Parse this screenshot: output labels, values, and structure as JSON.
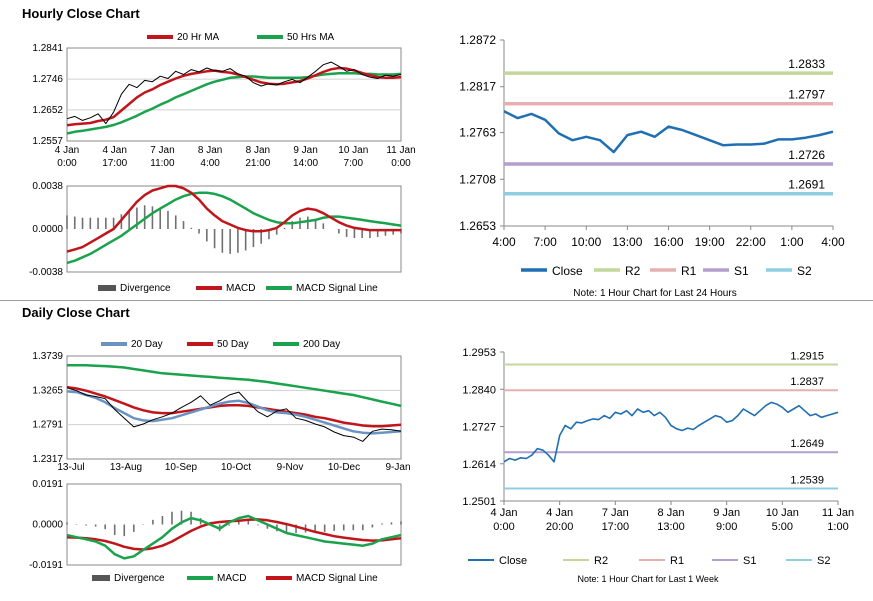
{
  "hourly_title": "Hourly Close Chart",
  "daily_title": "Daily Close Chart",
  "colors": {
    "ma20": "#c0161b",
    "ma50": "#1aa24c",
    "price": "#000000",
    "macd": "#c0161b",
    "signal": "#1aa24c",
    "divergence": "#707070",
    "close": "#1f6fb2",
    "r2": "#c4d79b",
    "r1": "#e6b0b0",
    "s1": "#b39fcb",
    "s2": "#8fcde0",
    "ma200": "#1aa24c",
    "ma20d": "#6a93c4",
    "ma50d": "#c0161b"
  },
  "chart_data": [
    {
      "id": "hourly-price",
      "type": "line",
      "title": "Hourly Close Chart",
      "legend": [
        "20 Hr MA",
        "50 Hrs MA"
      ],
      "yticks": [
        "1.2841",
        "1.2746",
        "1.2652",
        "1.2557"
      ],
      "ylim": [
        1.2557,
        1.2841
      ],
      "xticks": [
        [
          "4 Jan",
          "0:00"
        ],
        [
          "4 Jan",
          "17:00"
        ],
        [
          "7 Jan",
          "11:00"
        ],
        [
          "8 Jan",
          "4:00"
        ],
        [
          "8 Jan",
          "21:00"
        ],
        [
          "9 Jan",
          "14:00"
        ],
        [
          "10 Jan",
          "7:00"
        ],
        [
          "11 Jan",
          "0:00"
        ]
      ],
      "series": [
        {
          "name": "Close",
          "values": [
            1.2625,
            1.2632,
            1.262,
            1.2628,
            1.264,
            1.261,
            1.2645,
            1.27,
            1.273,
            1.272,
            1.2742,
            1.2738,
            1.2755,
            1.2748,
            1.277,
            1.276,
            1.2775,
            1.2768,
            1.278,
            1.2772,
            1.277,
            1.2778,
            1.2762,
            1.2755,
            1.2735,
            1.2725,
            1.2732,
            1.2728,
            1.2738,
            1.2745,
            1.2735,
            1.2752,
            1.277,
            1.279,
            1.2798,
            1.2785,
            1.277,
            1.2775,
            1.276,
            1.2752,
            1.2748,
            1.2758,
            1.2755,
            1.276
          ]
        },
        {
          "name": "20 Hr MA",
          "values": [
            1.2605,
            1.2608,
            1.261,
            1.2612,
            1.2618,
            1.2622,
            1.263,
            1.265,
            1.267,
            1.269,
            1.2705,
            1.2715,
            1.2728,
            1.2738,
            1.2748,
            1.2756,
            1.2762,
            1.2766,
            1.277,
            1.2772,
            1.2768,
            1.2766,
            1.276,
            1.2752,
            1.2744,
            1.2736,
            1.2732,
            1.273,
            1.2732,
            1.2736,
            1.274,
            1.2748,
            1.2758,
            1.2768,
            1.2776,
            1.278,
            1.2778,
            1.2772,
            1.2765,
            1.2758,
            1.2752,
            1.275,
            1.275,
            1.2752
          ]
        },
        {
          "name": "50 Hrs MA",
          "values": [
            1.258,
            1.2585,
            1.2588,
            1.2592,
            1.2596,
            1.26,
            1.2606,
            1.2614,
            1.2624,
            1.2634,
            1.2646,
            1.2656,
            1.2668,
            1.2678,
            1.269,
            1.27,
            1.271,
            1.272,
            1.273,
            1.2738,
            1.2744,
            1.275,
            1.2752,
            1.2754,
            1.2754,
            1.2752,
            1.275,
            1.275,
            1.275,
            1.275,
            1.275,
            1.2752,
            1.2756,
            1.276,
            1.2762,
            1.2764,
            1.2764,
            1.2764,
            1.2762,
            1.2762,
            1.276,
            1.276,
            1.276,
            1.2762
          ]
        }
      ]
    },
    {
      "id": "hourly-macd",
      "type": "line",
      "legend": [
        "Divergence",
        "MACD",
        "MACD Signal Line"
      ],
      "yticks": [
        "0.0038",
        "0.0000",
        "-0.0038"
      ],
      "ylim": [
        -0.0038,
        0.0038
      ],
      "series": [
        {
          "name": "MACD",
          "values": [
            -0.002,
            -0.0018,
            -0.0016,
            -0.0012,
            -0.0008,
            -0.0004,
            0.0,
            0.0008,
            0.0016,
            0.0024,
            0.003,
            0.0034,
            0.0036,
            0.0038,
            0.0038,
            0.0036,
            0.0032,
            0.0026,
            0.0018,
            0.0012,
            0.0007,
            0.0004,
            0.0001,
            -0.0001,
            -0.0002,
            -0.0002,
            -0.0001,
            0.0001,
            0.0006,
            0.0012,
            0.0016,
            0.0018,
            0.0017,
            0.0014,
            0.001,
            0.0006,
            0.0003,
            0.0001,
            0.0,
            -0.0001,
            -0.0001,
            -0.0001,
            -0.0001,
            -0.0001
          ]
        },
        {
          "name": "MACD Signal Line",
          "values": [
            -0.003,
            -0.0028,
            -0.0025,
            -0.0022,
            -0.0018,
            -0.0014,
            -0.001,
            -0.0006,
            -0.0001,
            0.0004,
            0.0009,
            0.0014,
            0.0018,
            0.0022,
            0.0026,
            0.0029,
            0.0031,
            0.0032,
            0.0032,
            0.0031,
            0.0029,
            0.0026,
            0.0022,
            0.0018,
            0.0014,
            0.0011,
            0.0008,
            0.0006,
            0.0005,
            0.0005,
            0.0006,
            0.0007,
            0.0008,
            0.001,
            0.0011,
            0.0011,
            0.001,
            0.0009,
            0.0008,
            0.0007,
            0.0006,
            0.0005,
            0.0004,
            0.0003
          ]
        },
        {
          "name": "Divergence",
          "values": [
            0.0012,
            0.0011,
            0.001,
            0.001,
            0.001,
            0.001,
            0.001,
            0.0013,
            0.0016,
            0.0019,
            0.0021,
            0.002,
            0.0018,
            0.0016,
            0.0012,
            0.0007,
            0.0001,
            -0.0004,
            -0.0011,
            -0.0017,
            -0.0021,
            -0.0022,
            -0.0021,
            -0.0019,
            -0.0016,
            -0.0013,
            -0.0009,
            -0.0005,
            0.0001,
            0.0007,
            0.001,
            0.0011,
            0.0009,
            0.0005,
            0.0,
            -0.0004,
            -0.0007,
            -0.0008,
            -0.0008,
            -0.0008,
            -0.0007,
            -0.0006,
            -0.0005,
            -0.0004
          ]
        }
      ]
    },
    {
      "id": "hourly-levels",
      "type": "line",
      "yticks": [
        "1.2872",
        "1.2817",
        "1.2763",
        "1.2708",
        "1.2653"
      ],
      "ylim": [
        1.2653,
        1.2872
      ],
      "xticks": [
        "4:00",
        "7:00",
        "10:00",
        "13:00",
        "16:00",
        "19:00",
        "22:00",
        "1:00",
        "4:00"
      ],
      "levels": [
        {
          "name": "R2",
          "value": 1.2833,
          "label": "1.2833"
        },
        {
          "name": "R1",
          "value": 1.2797,
          "label": "1.2797"
        },
        {
          "name": "S1",
          "value": 1.2726,
          "label": "1.2726"
        },
        {
          "name": "S2",
          "value": 1.2691,
          "label": "1.2691"
        }
      ],
      "close": [
        1.2788,
        1.278,
        1.2785,
        1.2778,
        1.2762,
        1.2754,
        1.2758,
        1.2754,
        1.274,
        1.276,
        1.2764,
        1.2758,
        1.277,
        1.2766,
        1.276,
        1.2754,
        1.2748,
        1.2749,
        1.2749,
        1.275,
        1.2755,
        1.2755,
        1.2757,
        1.276,
        1.2764
      ],
      "legend": [
        "Close",
        "R2",
        "R1",
        "S1",
        "S2"
      ],
      "note": "Note: 1 Hour Chart for Last 24 Hours"
    },
    {
      "id": "daily-price",
      "type": "line",
      "title": "Daily Close Chart",
      "legend": [
        "20 Day",
        "50 Day",
        "200 Day"
      ],
      "yticks": [
        "1.3739",
        "1.3265",
        "1.2791",
        "1.2317"
      ],
      "ylim": [
        1.2317,
        1.3739
      ],
      "xticks": [
        "13-Jul",
        "13-Aug",
        "10-Sep",
        "10-Oct",
        "9-Nov",
        "10-Dec",
        "9-Jan"
      ],
      "series": [
        {
          "name": "Close",
          "values": [
            1.33,
            1.326,
            1.32,
            1.318,
            1.315,
            1.3,
            1.288,
            1.276,
            1.28,
            1.286,
            1.29,
            1.295,
            1.303,
            1.31,
            1.319,
            1.306,
            1.312,
            1.32,
            1.324,
            1.31,
            1.297,
            1.29,
            1.298,
            1.301,
            1.288,
            1.285,
            1.28,
            1.276,
            1.269,
            1.264,
            1.262,
            1.256,
            1.27,
            1.273,
            1.272,
            1.27
          ]
        },
        {
          "name": "20 Day",
          "values": [
            1.325,
            1.324,
            1.32,
            1.316,
            1.31,
            1.302,
            1.295,
            1.288,
            1.285,
            1.284,
            1.286,
            1.288,
            1.292,
            1.296,
            1.3,
            1.304,
            1.308,
            1.311,
            1.312,
            1.309,
            1.304,
            1.299,
            1.296,
            1.295,
            1.293,
            1.29,
            1.286,
            1.282,
            1.278,
            1.274,
            1.27,
            1.268,
            1.267,
            1.268,
            1.269,
            1.27
          ]
        },
        {
          "name": "50 Day",
          "values": [
            1.331,
            1.329,
            1.326,
            1.322,
            1.318,
            1.313,
            1.308,
            1.303,
            1.299,
            1.296,
            1.295,
            1.295,
            1.297,
            1.299,
            1.301,
            1.303,
            1.305,
            1.306,
            1.306,
            1.305,
            1.303,
            1.301,
            1.299,
            1.297,
            1.295,
            1.293,
            1.29,
            1.288,
            1.285,
            1.282,
            1.28,
            1.278,
            1.277,
            1.277,
            1.278,
            1.279
          ]
        },
        {
          "name": "200 Day",
          "values": [
            1.361,
            1.361,
            1.361,
            1.3605,
            1.36,
            1.359,
            1.358,
            1.356,
            1.354,
            1.352,
            1.35,
            1.349,
            1.348,
            1.347,
            1.346,
            1.345,
            1.344,
            1.343,
            1.342,
            1.341,
            1.3395,
            1.338,
            1.336,
            1.334,
            1.332,
            1.33,
            1.328,
            1.326,
            1.324,
            1.322,
            1.32,
            1.317,
            1.314,
            1.311,
            1.308,
            1.305
          ]
        }
      ]
    },
    {
      "id": "daily-macd",
      "type": "line",
      "legend": [
        "Divergence",
        "MACD",
        "MACD Signal Line"
      ],
      "yticks": [
        "0.0191",
        "0.0000",
        "-0.0191"
      ],
      "ylim": [
        -0.0191,
        0.0191
      ],
      "series": [
        {
          "name": "MACD",
          "values": [
            -0.005,
            -0.006,
            -0.007,
            -0.008,
            -0.01,
            -0.014,
            -0.016,
            -0.015,
            -0.012,
            -0.009,
            -0.006,
            -0.002,
            0.001,
            0.003,
            0.002,
            0.0,
            -0.002,
            0.001,
            0.003,
            0.004,
            0.002,
            0.0,
            -0.002,
            -0.004,
            -0.005,
            -0.006,
            -0.007,
            -0.008,
            -0.0085,
            -0.009,
            -0.0095,
            -0.01,
            -0.009,
            -0.007,
            -0.006,
            -0.005
          ]
        },
        {
          "name": "MACD Signal Line",
          "values": [
            -0.006,
            -0.0062,
            -0.0065,
            -0.007,
            -0.0078,
            -0.009,
            -0.0105,
            -0.0115,
            -0.0118,
            -0.0112,
            -0.01,
            -0.008,
            -0.0055,
            -0.003,
            -0.001,
            0.0005,
            0.0012,
            0.0015,
            0.0018,
            0.0022,
            0.0024,
            0.002,
            0.0012,
            0.0002,
            -0.001,
            -0.0022,
            -0.0035,
            -0.0045,
            -0.0055,
            -0.0062,
            -0.0068,
            -0.0073,
            -0.0076,
            -0.0075,
            -0.007,
            -0.0065
          ]
        },
        {
          "name": "Divergence",
          "values": [
            0.001,
            0.0002,
            -0.0005,
            -0.001,
            -0.0022,
            -0.005,
            -0.0055,
            -0.0035,
            -0.0002,
            0.0022,
            0.004,
            0.006,
            0.0065,
            0.006,
            0.003,
            -0.0005,
            -0.0032,
            -0.0005,
            0.0012,
            0.0018,
            -0.0004,
            -0.002,
            -0.0032,
            -0.0042,
            -0.004,
            -0.0038,
            -0.0035,
            -0.0035,
            -0.003,
            -0.0028,
            -0.0027,
            -0.0027,
            -0.0014,
            0.0005,
            0.001,
            0.0015
          ]
        }
      ]
    },
    {
      "id": "daily-levels",
      "type": "line",
      "yticks": [
        "1.2953",
        "1.2840",
        "1.2727",
        "1.2614",
        "1.2501"
      ],
      "ylim": [
        1.2501,
        1.2953
      ],
      "xticks": [
        [
          "4 Jan",
          "0:00"
        ],
        [
          "4 Jan",
          "20:00"
        ],
        [
          "7 Jan",
          "17:00"
        ],
        [
          "8 Jan",
          "13:00"
        ],
        [
          "9 Jan",
          "9:00"
        ],
        [
          "10 Jan",
          "5:00"
        ],
        [
          "11 Jan",
          "1:00"
        ]
      ],
      "levels": [
        {
          "name": "R2",
          "value": 1.2915,
          "label": "1.2915"
        },
        {
          "name": "R1",
          "value": 1.2837,
          "label": "1.2837"
        },
        {
          "name": "S1",
          "value": 1.2649,
          "label": "1.2649"
        },
        {
          "name": "S2",
          "value": 1.2539,
          "label": "1.2539"
        }
      ],
      "close": [
        1.262,
        1.263,
        1.2625,
        1.2632,
        1.263,
        1.264,
        1.266,
        1.2655,
        1.264,
        1.262,
        1.27,
        1.273,
        1.272,
        1.274,
        1.2738,
        1.2745,
        1.275,
        1.2748,
        1.276,
        1.2752,
        1.277,
        1.2765,
        1.2775,
        1.276,
        1.278,
        1.277,
        1.2775,
        1.276,
        1.277,
        1.2755,
        1.273,
        1.272,
        1.2715,
        1.2722,
        1.2718,
        1.273,
        1.274,
        1.275,
        1.276,
        1.2755,
        1.274,
        1.2745,
        1.276,
        1.278,
        1.277,
        1.276,
        1.2775,
        1.279,
        1.28,
        1.2795,
        1.2785,
        1.277,
        1.278,
        1.279,
        1.2775,
        1.276,
        1.2765,
        1.2755,
        1.276,
        1.2765,
        1.277
      ],
      "legend": [
        "Close",
        "R2",
        "R1",
        "S1",
        "S2"
      ],
      "note": "Note: 1 Hour Chart for Last 1 Week"
    }
  ]
}
